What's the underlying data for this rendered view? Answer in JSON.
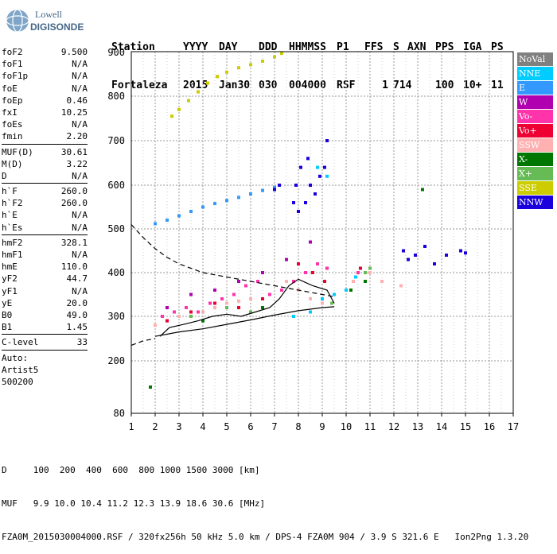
{
  "logo": {
    "line1": "Lowell",
    "line2": "DIGISONDE"
  },
  "header": {
    "labels": [
      "Station",
      "YYYY",
      "DAY",
      "DDD",
      "HHMMSS",
      "P1",
      "FFS",
      "S",
      "AXN",
      "PPS",
      "IGA",
      "PS"
    ],
    "values": [
      "Fortaleza",
      "2015",
      "Jan30",
      "030",
      "004000",
      "RSF",
      "1",
      "714",
      "100",
      "10+",
      "11"
    ]
  },
  "params": {
    "group1": [
      {
        "name": "foF2",
        "value": "9.500"
      },
      {
        "name": "foF1",
        "value": "N/A"
      },
      {
        "name": "foF1p",
        "value": "N/A"
      },
      {
        "name": "foE",
        "value": "N/A"
      },
      {
        "name": "foEp",
        "value": "0.46"
      },
      {
        "name": "fxI",
        "value": "10.25"
      },
      {
        "name": "foEs",
        "value": "N/A"
      },
      {
        "name": "fmin",
        "value": "2.20"
      }
    ],
    "group2": [
      {
        "name": "MUF(D)",
        "value": "30.61"
      },
      {
        "name": "M(D)",
        "value": "3.22"
      },
      {
        "name": "D",
        "value": "N/A"
      }
    ],
    "group3": [
      {
        "name": "h`F",
        "value": "260.0"
      },
      {
        "name": "h`F2",
        "value": "260.0"
      },
      {
        "name": "h`E",
        "value": "N/A"
      },
      {
        "name": "h`Es",
        "value": "N/A"
      }
    ],
    "group4": [
      {
        "name": "hmF2",
        "value": "328.1"
      },
      {
        "name": "hmF1",
        "value": "N/A"
      },
      {
        "name": "hmE",
        "value": "110.0"
      },
      {
        "name": "yF2",
        "value": "44.7"
      },
      {
        "name": "yF1",
        "value": "N/A"
      },
      {
        "name": "yE",
        "value": "20.0"
      },
      {
        "name": "B0",
        "value": "49.0"
      },
      {
        "name": "B1",
        "value": "1.45"
      }
    ],
    "group5": [
      {
        "name": "C-level",
        "value": "33"
      }
    ],
    "auto_lines": [
      "Auto:",
      "Artist5",
      "500200"
    ]
  },
  "legend": [
    {
      "label": "NoVal",
      "color": "#808080"
    },
    {
      "label": "NNE",
      "color": "#00ccff"
    },
    {
      "label": "E",
      "color": "#3399ff"
    },
    {
      "label": "W",
      "color": "#b000b0"
    },
    {
      "label": "Vo-",
      "color": "#ff33aa"
    },
    {
      "label": "Vo+",
      "color": "#ee0033"
    },
    {
      "label": "SSW",
      "color": "#ffb0b0"
    },
    {
      "label": "X-",
      "color": "#007700"
    },
    {
      "label": "X+",
      "color": "#66bb55"
    },
    {
      "label": "SSE",
      "color": "#cccc00"
    },
    {
      "label": "NNW",
      "color": "#1a00dd"
    }
  ],
  "bottom": {
    "d_label": "D",
    "d_values": "100  200  400  600  800 1000 1500 3000 [km]",
    "muf_label": "MUF",
    "muf_values": "9.9 10.0 10.4 11.2 12.3 13.9 18.6 30.6 [MHz]",
    "footer": "FZA0M_2015030004000.RSF / 320fx256h 50 kHz 5.0 km / DPS-4 FZA0M 904 / 3.9 S 321.6 E   Ion2Png 1.3.20"
  },
  "chart_data": {
    "type": "scatter",
    "xlim": [
      1,
      17
    ],
    "ylim": [
      80,
      900
    ],
    "x_ticks": [
      1,
      2,
      3,
      4,
      5,
      6,
      7,
      8,
      9,
      10,
      11,
      12,
      13,
      14,
      15,
      16,
      17
    ],
    "y_ticks": [
      80,
      200,
      300,
      400,
      500,
      600,
      700,
      800,
      900
    ],
    "grid": true,
    "legend_position": "right",
    "clusters": [
      {
        "series": "SSE",
        "points": [
          [
            2.7,
            755
          ],
          [
            3.0,
            770
          ],
          [
            3.4,
            790
          ],
          [
            3.8,
            810
          ],
          [
            4.2,
            830
          ],
          [
            4.6,
            845
          ],
          [
            5.0,
            855
          ],
          [
            5.5,
            865
          ],
          [
            6.0,
            872
          ],
          [
            6.5,
            880
          ],
          [
            7.0,
            890
          ],
          [
            7.3,
            898
          ]
        ]
      },
      {
        "series": "E",
        "points": [
          [
            2.0,
            512
          ],
          [
            2.5,
            520
          ],
          [
            3.0,
            530
          ],
          [
            3.5,
            540
          ],
          [
            4.0,
            550
          ],
          [
            4.5,
            558
          ],
          [
            5.0,
            565
          ],
          [
            5.5,
            572
          ],
          [
            6.0,
            580
          ],
          [
            6.5,
            588
          ],
          [
            7.0,
            595
          ]
        ]
      },
      {
        "series": "NNW",
        "points": [
          [
            7.0,
            590
          ],
          [
            7.2,
            600
          ],
          [
            7.8,
            560
          ],
          [
            7.9,
            600
          ],
          [
            8.1,
            640
          ],
          [
            8.3,
            560
          ],
          [
            8.5,
            600
          ],
          [
            8.7,
            580
          ],
          [
            8.9,
            620
          ],
          [
            9.1,
            640
          ],
          [
            9.2,
            700
          ],
          [
            8.4,
            660
          ],
          [
            8.0,
            540
          ],
          [
            12.4,
            450
          ],
          [
            12.6,
            430
          ],
          [
            12.9,
            440
          ],
          [
            13.3,
            460
          ],
          [
            13.7,
            420
          ],
          [
            14.2,
            440
          ],
          [
            14.8,
            450
          ],
          [
            15.0,
            445
          ]
        ]
      },
      {
        "series": "Vo-",
        "points": [
          [
            2.3,
            300
          ],
          [
            2.8,
            310
          ],
          [
            3.3,
            320
          ],
          [
            3.8,
            310
          ],
          [
            4.3,
            330
          ],
          [
            4.8,
            340
          ],
          [
            5.3,
            350
          ],
          [
            5.8,
            370
          ],
          [
            6.3,
            380
          ],
          [
            6.8,
            350
          ],
          [
            7.3,
            360
          ],
          [
            7.8,
            380
          ],
          [
            8.3,
            400
          ],
          [
            8.8,
            420
          ],
          [
            9.2,
            410
          ],
          [
            10.5,
            400
          ]
        ]
      },
      {
        "series": "SSW",
        "points": [
          [
            2.0,
            280
          ],
          [
            2.5,
            290
          ],
          [
            3.0,
            300
          ],
          [
            3.5,
            300
          ],
          [
            4.0,
            310
          ],
          [
            4.5,
            320
          ],
          [
            5.0,
            330
          ],
          [
            5.5,
            335
          ],
          [
            6.0,
            340
          ],
          [
            7.5,
            380
          ],
          [
            8.0,
            360
          ],
          [
            8.5,
            340
          ],
          [
            9.0,
            330
          ],
          [
            10.3,
            380
          ],
          [
            11.0,
            400
          ],
          [
            11.5,
            380
          ],
          [
            12.3,
            370
          ]
        ]
      },
      {
        "series": "Vo+",
        "points": [
          [
            2.5,
            290
          ],
          [
            3.5,
            310
          ],
          [
            4.5,
            330
          ],
          [
            5.5,
            320
          ],
          [
            6.5,
            340
          ],
          [
            8.0,
            420
          ],
          [
            8.6,
            400
          ],
          [
            9.1,
            380
          ],
          [
            10.6,
            410
          ]
        ]
      },
      {
        "series": "X+",
        "points": [
          [
            3.5,
            300
          ],
          [
            5.0,
            320
          ],
          [
            6.0,
            310
          ],
          [
            9.4,
            330
          ],
          [
            10.8,
            400
          ],
          [
            11.0,
            410
          ]
        ]
      },
      {
        "series": "X-",
        "points": [
          [
            1.8,
            140
          ],
          [
            4.0,
            290
          ],
          [
            6.5,
            320
          ],
          [
            10.2,
            360
          ],
          [
            10.8,
            380
          ],
          [
            13.2,
            590
          ]
        ]
      },
      {
        "series": "W",
        "points": [
          [
            2.5,
            320
          ],
          [
            3.5,
            350
          ],
          [
            4.5,
            360
          ],
          [
            5.5,
            380
          ],
          [
            6.5,
            400
          ],
          [
            7.5,
            430
          ],
          [
            8.5,
            470
          ]
        ]
      },
      {
        "series": "NNE",
        "points": [
          [
            7.8,
            300
          ],
          [
            8.5,
            310
          ],
          [
            9.0,
            340
          ],
          [
            9.5,
            350
          ],
          [
            10.0,
            360
          ],
          [
            10.4,
            390
          ],
          [
            8.8,
            640
          ],
          [
            9.2,
            620
          ]
        ]
      }
    ],
    "trace_virtual": [
      [
        2.0,
        255
      ],
      [
        3.0,
        265
      ],
      [
        4.0,
        272
      ],
      [
        5.0,
        282
      ],
      [
        6.0,
        292
      ],
      [
        7.0,
        303
      ],
      [
        8.0,
        313
      ],
      [
        9.0,
        320
      ],
      [
        9.5,
        322
      ]
    ],
    "trace_profile": [
      [
        2.2,
        255
      ],
      [
        2.6,
        275
      ],
      [
        3.2,
        282
      ],
      [
        3.8,
        290
      ],
      [
        4.4,
        300
      ],
      [
        5.0,
        305
      ],
      [
        5.6,
        300
      ],
      [
        6.2,
        310
      ],
      [
        6.8,
        320
      ],
      [
        7.2,
        340
      ],
      [
        7.6,
        370
      ],
      [
        8.0,
        385
      ],
      [
        8.6,
        370
      ],
      [
        9.2,
        360
      ],
      [
        9.5,
        330
      ]
    ],
    "trace_dashed_top": [
      [
        1.0,
        510
      ],
      [
        1.5,
        480
      ],
      [
        2.0,
        455
      ],
      [
        2.5,
        435
      ],
      [
        3.0,
        420
      ],
      [
        3.5,
        410
      ],
      [
        4.0,
        400
      ],
      [
        5.0,
        390
      ],
      [
        6.0,
        380
      ],
      [
        7.0,
        370
      ],
      [
        8.0,
        360
      ],
      [
        9.0,
        350
      ],
      [
        9.5,
        345
      ]
    ],
    "trace_dashed_bottom": [
      [
        1.0,
        235
      ],
      [
        1.5,
        245
      ],
      [
        2.0,
        250
      ]
    ]
  }
}
